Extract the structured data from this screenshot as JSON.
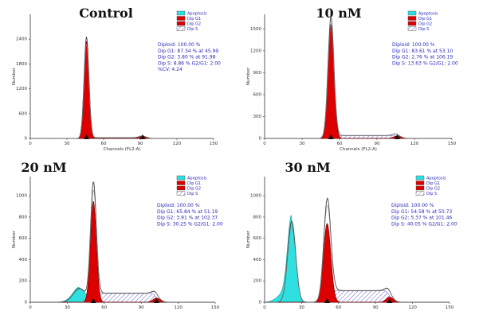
{
  "chart_data": [
    {
      "type": "area",
      "panel_title": "Control",
      "xlabel": "Channels (FL2-A)",
      "ylabel": "Number",
      "xlim": [
        0,
        150
      ],
      "ylim": [
        0,
        3000
      ],
      "xticks": [
        "0",
        "30",
        "60",
        "90",
        "120",
        "150"
      ],
      "yticks": [
        "0",
        "600",
        "1200",
        "1800",
        "2400"
      ],
      "ytick_values": [
        0,
        600,
        1200,
        1800,
        2400
      ],
      "legend": [
        "Apoptosis",
        "Dip G1",
        "Dip G2",
        "Dip S"
      ],
      "stats": [
        "Diploid: 100.00 %",
        "Dip G1: 87.34 % at 45.99",
        "Dip G2: 3.80 % at 91.98",
        "Dip S: 8.86 %   G2/G1: 2.00",
        "%CV: 4.24"
      ],
      "markers_x": [
        45.99,
        91.98
      ],
      "series": [
        {
          "name": "Dip G1",
          "center": 45.99,
          "peak": 2350,
          "sigma": 2.0
        },
        {
          "name": "Dip G2",
          "center": 91.98,
          "peak": 50,
          "sigma": 3.0
        },
        {
          "name": "Dip S",
          "from": 45.99,
          "to": 91.98,
          "level": 15
        }
      ],
      "envelope_peak": 2450
    },
    {
      "type": "area",
      "panel_title": "10 nM",
      "xlabel": "Channels (FL2-A)",
      "ylabel": "Number",
      "xlim": [
        0,
        150
      ],
      "ylim": [
        0,
        1700
      ],
      "xticks": [
        "0",
        "30",
        "60",
        "90",
        "120",
        "150"
      ],
      "yticks": [
        "0",
        "300",
        "600",
        "900",
        "1200",
        "1500"
      ],
      "ytick_values": [
        0,
        300,
        600,
        900,
        1200,
        1500
      ],
      "legend": [
        "Apoptosis",
        "Dip G1",
        "Dip G2",
        "Dip S"
      ],
      "stats": [
        "Diploid: 100.00 %",
        "Dip G1: 83.61 % at 53.10",
        "Dip G2: 2.76 % at 106.19",
        "Dip S: 13.63 %   G2/G1: 2.00"
      ],
      "markers_x": [
        53.1,
        106.19
      ],
      "series": [
        {
          "name": "Dip G1",
          "center": 53.1,
          "peak": 1560,
          "sigma": 2.4
        },
        {
          "name": "Dip G2",
          "center": 106.19,
          "peak": 35,
          "sigma": 3.0
        },
        {
          "name": "Dip S",
          "from": 53.1,
          "to": 106.19,
          "level": 40
        }
      ],
      "envelope_peak": 1640
    },
    {
      "type": "area",
      "panel_title": "20 nM",
      "xlabel": "",
      "ylabel": "Number",
      "xlim": [
        0,
        150
      ],
      "ylim": [
        0,
        1180
      ],
      "xticks": [
        "0",
        "30",
        "60",
        "90",
        "120",
        "150"
      ],
      "yticks": [
        "0",
        "200",
        "400",
        "600",
        "800",
        "1000"
      ],
      "ytick_values": [
        0,
        200,
        400,
        600,
        800,
        1000
      ],
      "legend": [
        "Apoptosis",
        "Dip G1",
        "Dip G2",
        "Dip S"
      ],
      "stats": [
        "Diploid: 100.00 %",
        "Dip G1: 65.84 % at 51.19",
        "Dip G2: 3.91 % at 102.37",
        "Dip S: 30.25 %   G2/G1: 2.00"
      ],
      "markers_x": [
        51.19,
        102.37
      ],
      "series": [
        {
          "name": "Apoptosis",
          "center": 40,
          "peak": 130,
          "sigma": 5.0
        },
        {
          "name": "Dip G1",
          "center": 51.19,
          "peak": 950,
          "sigma": 2.4
        },
        {
          "name": "Dip G2",
          "center": 102.37,
          "peak": 40,
          "sigma": 3.0
        },
        {
          "name": "Dip S",
          "from": 51.19,
          "to": 102.37,
          "level": 85
        }
      ],
      "envelope_peak": 1080
    },
    {
      "type": "area",
      "panel_title": "30 nM",
      "xlabel": "",
      "ylabel": "Number",
      "xlim": [
        0,
        150
      ],
      "ylim": [
        0,
        1180
      ],
      "xticks": [
        "0",
        "30",
        "60",
        "90",
        "120",
        "150"
      ],
      "yticks": [
        "0",
        "200",
        "400",
        "600",
        "800",
        "1000"
      ],
      "ytick_values": [
        0,
        200,
        400,
        600,
        800,
        1000
      ],
      "legend": [
        "Apoptosis",
        "Dip G1",
        "Dip G2",
        "Dip S"
      ],
      "stats": [
        "Diploid: 100.00 %",
        "Dip G1: 54.58 % at 50.73",
        "Dip G2: 5.37 % at 101.46",
        "Dip S: 40.05 %   G2/G1: 2.00"
      ],
      "markers_x": [
        50.73,
        101.46
      ],
      "series": [
        {
          "name": "Apoptosis",
          "center": 22,
          "peak": 760,
          "sigma": 3.2
        },
        {
          "name": "Dip G1",
          "center": 50.73,
          "peak": 740,
          "sigma": 3.0
        },
        {
          "name": "Dip G2",
          "center": 101.46,
          "peak": 50,
          "sigma": 3.0
        },
        {
          "name": "Dip S",
          "from": 50.73,
          "to": 101.46,
          "level": 110
        }
      ],
      "envelope_peak": 920
    }
  ],
  "colors": {
    "apoptosis": "#2ee0e0",
    "dip_g1": "#dd0000",
    "dip_g2": "#dd0000",
    "dip_s": "#7a7ad8",
    "stat_text": "#2a2ab8"
  }
}
